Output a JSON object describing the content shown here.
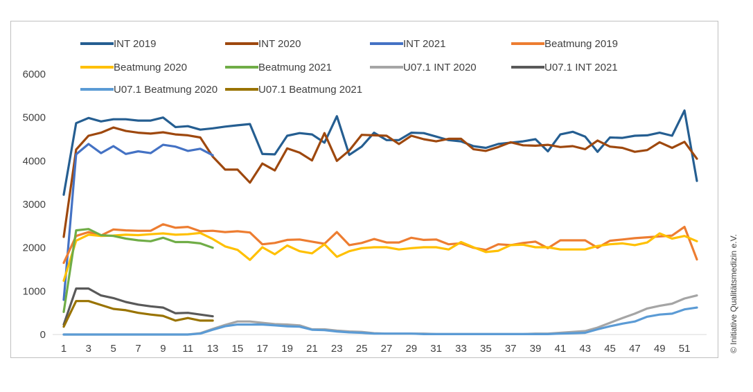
{
  "copyright": "© Initiative Qualitätsmedizin e.V.",
  "chart_data": {
    "type": "line",
    "title": "",
    "xlabel": "",
    "ylabel": "",
    "xlim": [
      1,
      52
    ],
    "ylim": [
      0,
      6000
    ],
    "y_ticks": [
      0,
      1000,
      2000,
      3000,
      4000,
      5000,
      6000
    ],
    "x_ticks": [
      1,
      3,
      5,
      7,
      9,
      11,
      13,
      15,
      17,
      19,
      21,
      23,
      25,
      27,
      29,
      31,
      33,
      35,
      37,
      39,
      41,
      43,
      45,
      47,
      49,
      51
    ],
    "grid": false,
    "legend_position": "top",
    "series": [
      {
        "name": "INT 2019",
        "color": "#255E91",
        "x_start": 1,
        "values": [
          3220,
          4870,
          4990,
          4910,
          4960,
          4960,
          4930,
          4930,
          5000,
          4780,
          4800,
          4720,
          4750,
          4790,
          4820,
          4850,
          4160,
          4150,
          4580,
          4640,
          4610,
          4420,
          5030,
          4140,
          4330,
          4650,
          4480,
          4480,
          4650,
          4640,
          4560,
          4480,
          4450,
          4340,
          4300,
          4390,
          4420,
          4450,
          4500,
          4220,
          4610,
          4670,
          4560,
          4210,
          4540,
          4530,
          4580,
          4590,
          4650,
          4580,
          5160,
          3540
        ]
      },
      {
        "name": "INT 2020",
        "color": "#9E480E",
        "x_start": 1,
        "values": [
          2250,
          4260,
          4580,
          4650,
          4770,
          4690,
          4650,
          4630,
          4660,
          4610,
          4590,
          4540,
          4100,
          3800,
          3800,
          3500,
          3940,
          3780,
          4290,
          4190,
          4010,
          4640,
          4000,
          4240,
          4600,
          4590,
          4580,
          4390,
          4580,
          4500,
          4450,
          4510,
          4510,
          4270,
          4230,
          4320,
          4430,
          4360,
          4350,
          4370,
          4320,
          4340,
          4270,
          4470,
          4330,
          4300,
          4210,
          4250,
          4430,
          4300,
          4440,
          4050
        ]
      },
      {
        "name": "INT 2021",
        "color": "#4472C4",
        "x_start": 1,
        "values": [
          800,
          4150,
          4390,
          4180,
          4340,
          4160,
          4220,
          4180,
          4370,
          4330,
          4230,
          4280,
          4130
        ]
      },
      {
        "name": "Beatmung 2019",
        "color": "#ED7D31",
        "x_start": 1,
        "values": [
          1650,
          2270,
          2360,
          2280,
          2420,
          2400,
          2390,
          2390,
          2540,
          2460,
          2480,
          2380,
          2390,
          2360,
          2380,
          2350,
          2080,
          2110,
          2180,
          2190,
          2140,
          2090,
          2360,
          2060,
          2110,
          2200,
          2120,
          2120,
          2230,
          2180,
          2190,
          2080,
          2100,
          2000,
          1950,
          2080,
          2060,
          2110,
          2140,
          1990,
          2170,
          2170,
          2170,
          2000,
          2160,
          2190,
          2220,
          2240,
          2260,
          2280,
          2480,
          1730
        ]
      },
      {
        "name": "Beatmung 2020",
        "color": "#FFC000",
        "x_start": 1,
        "values": [
          1240,
          2160,
          2300,
          2270,
          2280,
          2300,
          2290,
          2310,
          2330,
          2300,
          2310,
          2340,
          2200,
          2030,
          1950,
          1720,
          2010,
          1850,
          2050,
          1920,
          1870,
          2080,
          1790,
          1920,
          1990,
          2010,
          2010,
          1960,
          1990,
          2010,
          2010,
          1960,
          2130,
          2010,
          1900,
          1930,
          2060,
          2070,
          2010,
          2010,
          1960,
          1960,
          1960,
          2040,
          2080,
          2100,
          2060,
          2120,
          2330,
          2210,
          2270,
          2150
        ]
      },
      {
        "name": "Beatmung 2021",
        "color": "#70AD47",
        "x_start": 1,
        "values": [
          520,
          2400,
          2430,
          2290,
          2270,
          2210,
          2170,
          2150,
          2230,
          2130,
          2130,
          2100,
          2000
        ]
      },
      {
        "name": "U07.1 INT 2020",
        "color": "#A5A5A5",
        "x_start": 1,
        "values": [
          0,
          0,
          0,
          0,
          0,
          0,
          0,
          0,
          0,
          0,
          0,
          30,
          130,
          220,
          300,
          300,
          270,
          240,
          230,
          210,
          120,
          120,
          90,
          70,
          60,
          30,
          20,
          20,
          20,
          20,
          10,
          10,
          10,
          10,
          10,
          10,
          10,
          10,
          20,
          20,
          40,
          60,
          80,
          160,
          270,
          380,
          480,
          600,
          660,
          710,
          830,
          900
        ]
      },
      {
        "name": "U07.1 INT 2021",
        "color": "#595959",
        "x_start": 1,
        "values": [
          230,
          1060,
          1060,
          900,
          840,
          750,
          690,
          650,
          620,
          490,
          500,
          460,
          420
        ]
      },
      {
        "name": "U07.1 Beatmung 2020",
        "color": "#5B9BD5",
        "x_start": 1,
        "values": [
          0,
          0,
          0,
          0,
          0,
          0,
          0,
          0,
          0,
          0,
          0,
          20,
          110,
          190,
          230,
          230,
          230,
          210,
          190,
          180,
          110,
          100,
          70,
          50,
          40,
          20,
          20,
          20,
          20,
          10,
          10,
          10,
          10,
          10,
          10,
          10,
          10,
          10,
          10,
          10,
          20,
          30,
          40,
          120,
          190,
          250,
          300,
          410,
          460,
          480,
          580,
          620
        ]
      },
      {
        "name": "U07.1 Beatmung 2021",
        "color": "#997300",
        "x_start": 1,
        "values": [
          180,
          770,
          770,
          680,
          590,
          560,
          500,
          460,
          430,
          320,
          380,
          320,
          320
        ]
      }
    ]
  }
}
